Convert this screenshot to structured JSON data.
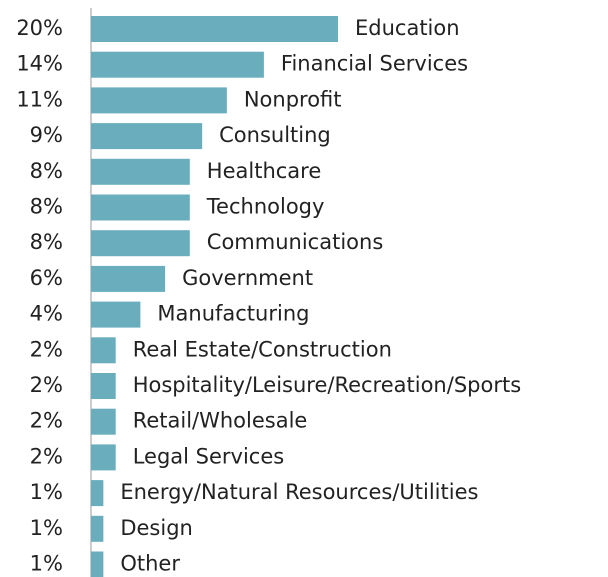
{
  "chart_data": {
    "type": "bar",
    "orientation": "horizontal",
    "color": "#6aaebd",
    "categories": [
      "Education",
      "Financial Services",
      "Nonprofit",
      "Consulting",
      "Healthcare",
      "Technology",
      "Communications",
      "Government",
      "Manufacturing",
      "Real Estate/Construction",
      "Hospitality/Leisure/Recreation/Sports",
      "Retail/Wholesale",
      "Legal Services",
      "Energy/Natural Resources/Utilities",
      "Design",
      "Other"
    ],
    "values": [
      20,
      14,
      11,
      9,
      8,
      8,
      8,
      6,
      4,
      2,
      2,
      2,
      2,
      1,
      1,
      1
    ],
    "value_labels": [
      "20%",
      "14%",
      "11%",
      "9%",
      "8%",
      "8%",
      "8%",
      "6%",
      "4%",
      "2%",
      "2%",
      "2%",
      "2%",
      "1%",
      "1%",
      "1%"
    ]
  }
}
